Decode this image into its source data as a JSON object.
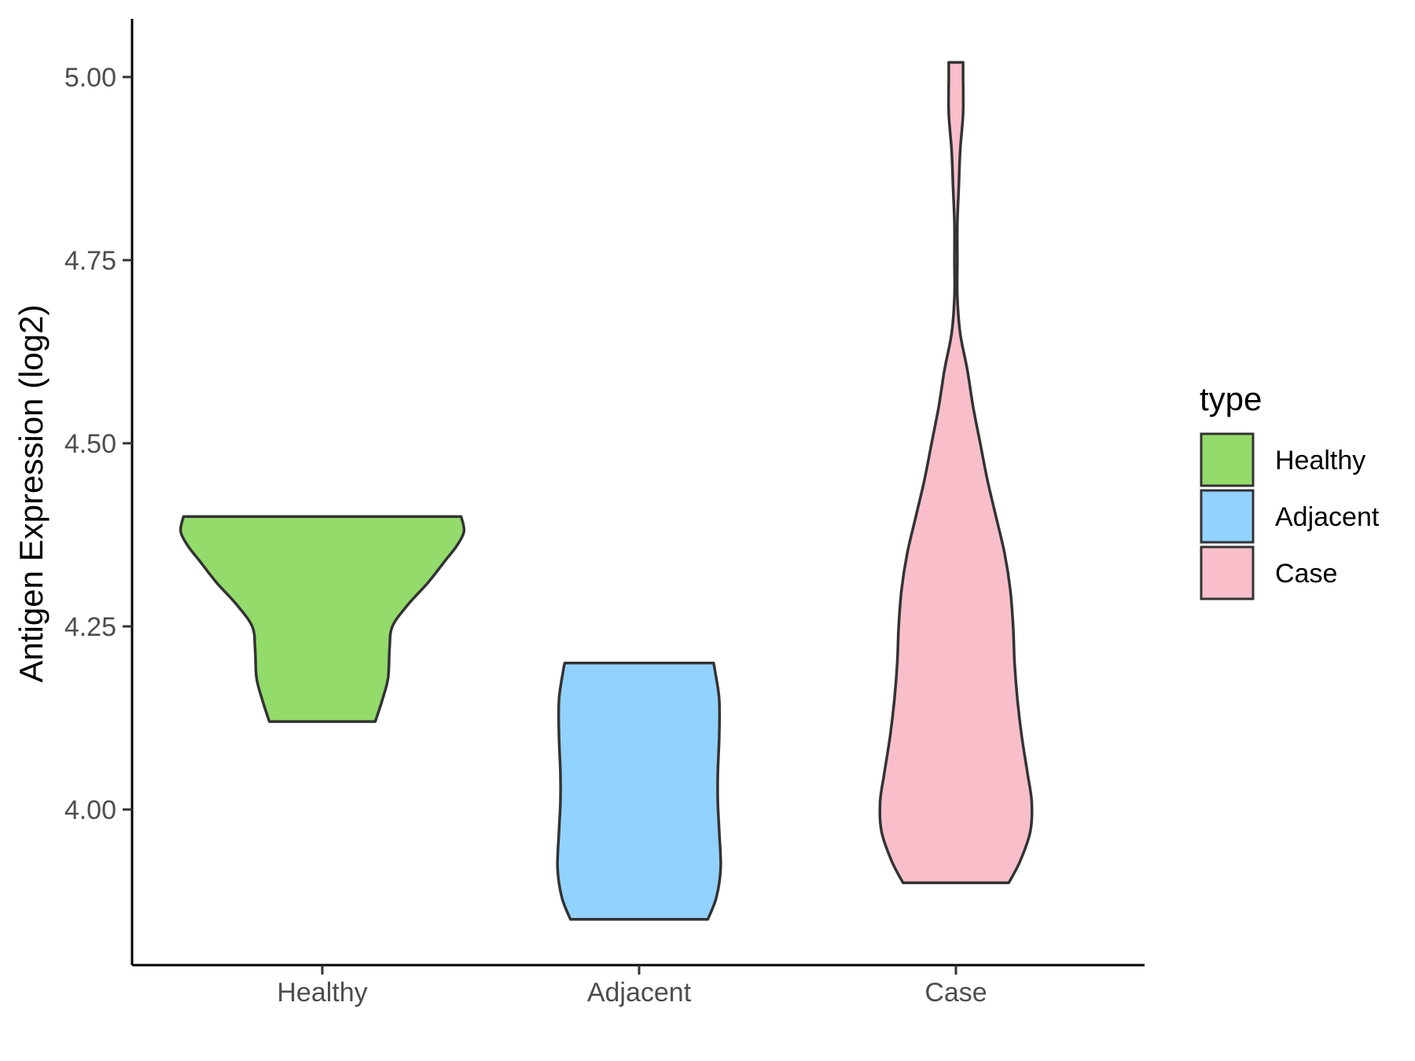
{
  "chart_data": {
    "type": "violin",
    "title": "",
    "xlabel": "",
    "ylabel": "Antigen Expression (log2)",
    "ylim": [
      3.83,
      5.08
    ],
    "yticks": [
      4.0,
      4.25,
      4.5,
      4.75,
      5.0
    ],
    "ytick_labels": [
      "4.00",
      "4.25",
      "4.50",
      "4.75",
      "5.00"
    ],
    "grid": false,
    "categories": [
      "Healthy",
      "Adjacent",
      "Case"
    ],
    "series": [
      {
        "name": "Healthy",
        "color": "#93DB6A",
        "min": 4.12,
        "max": 4.4,
        "density": [
          [
            4.12,
            0.37
          ],
          [
            4.15,
            0.42
          ],
          [
            4.18,
            0.46
          ],
          [
            4.22,
            0.47
          ],
          [
            4.25,
            0.49
          ],
          [
            4.28,
            0.6
          ],
          [
            4.31,
            0.74
          ],
          [
            4.34,
            0.86
          ],
          [
            4.36,
            0.94
          ],
          [
            4.38,
            0.99
          ],
          [
            4.4,
            0.97
          ]
        ]
      },
      {
        "name": "Adjacent",
        "color": "#92D2FF",
        "min": 3.85,
        "max": 4.2,
        "density": [
          [
            3.85,
            0.48
          ],
          [
            3.88,
            0.54
          ],
          [
            3.92,
            0.57
          ],
          [
            3.97,
            0.56
          ],
          [
            4.01,
            0.55
          ],
          [
            4.05,
            0.55
          ],
          [
            4.1,
            0.56
          ],
          [
            4.15,
            0.56
          ],
          [
            4.19,
            0.53
          ],
          [
            4.2,
            0.52
          ]
        ]
      },
      {
        "name": "Case",
        "color": "#F8BFCB",
        "min": 3.9,
        "max": 5.02,
        "density": [
          [
            3.9,
            0.37
          ],
          [
            3.93,
            0.45
          ],
          [
            3.97,
            0.52
          ],
          [
            4.01,
            0.53
          ],
          [
            4.05,
            0.5
          ],
          [
            4.1,
            0.46
          ],
          [
            4.15,
            0.43
          ],
          [
            4.2,
            0.41
          ],
          [
            4.25,
            0.4
          ],
          [
            4.3,
            0.38
          ],
          [
            4.35,
            0.34
          ],
          [
            4.4,
            0.28
          ],
          [
            4.45,
            0.22
          ],
          [
            4.5,
            0.17
          ],
          [
            4.55,
            0.12
          ],
          [
            4.6,
            0.08
          ],
          [
            4.65,
            0.03
          ],
          [
            4.7,
            0.01
          ],
          [
            4.75,
            0.01
          ],
          [
            4.8,
            0.01
          ],
          [
            4.85,
            0.02
          ],
          [
            4.9,
            0.03
          ],
          [
            4.95,
            0.05
          ],
          [
            5.0,
            0.05
          ],
          [
            5.02,
            0.05
          ]
        ]
      }
    ],
    "legend": {
      "title": "type",
      "position": "right",
      "entries": [
        "Healthy",
        "Adjacent",
        "Case"
      ]
    }
  }
}
